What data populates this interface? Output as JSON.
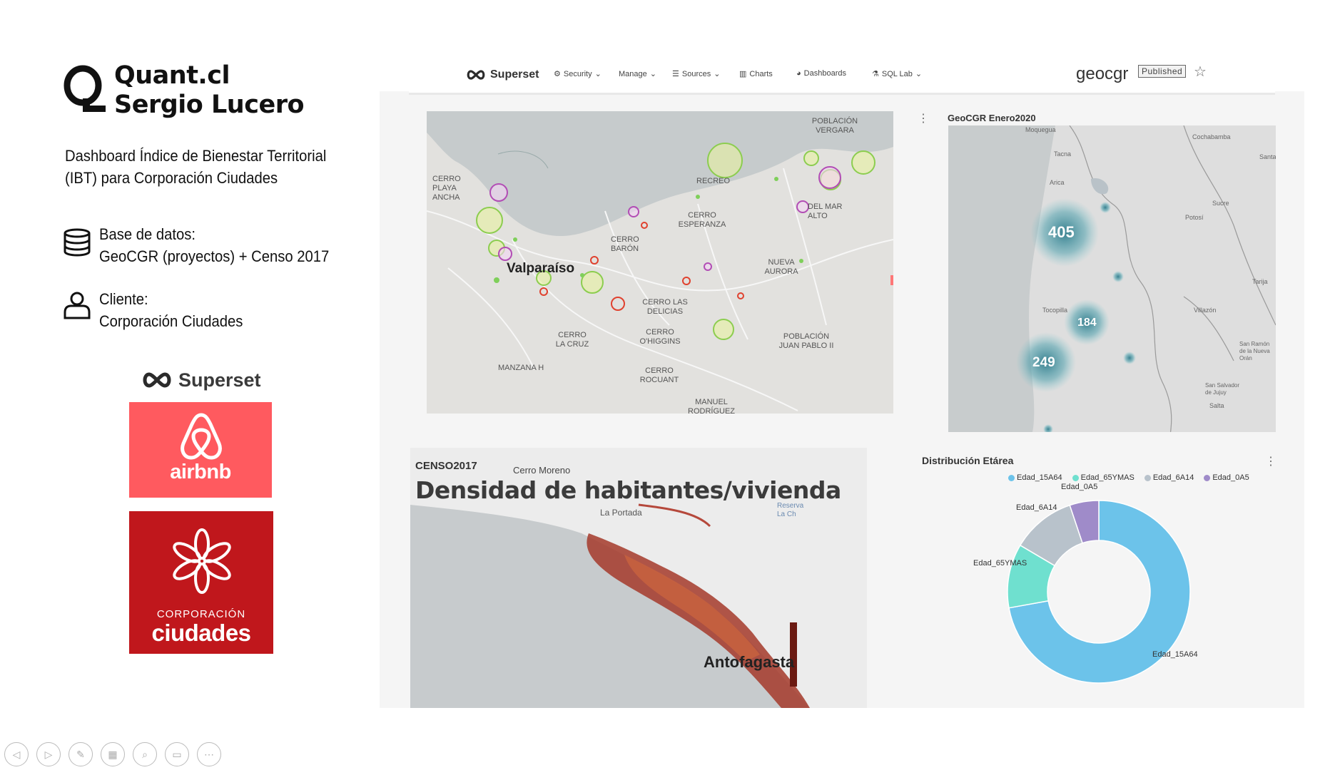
{
  "header": {
    "brand": "Quant.cl",
    "author": "Sergio Lucero",
    "description_line1": "Dashboard Índice de Bienestar Territorial",
    "description_line2": "(IBT) para Corporación Ciudades"
  },
  "info": {
    "database_label": "Base de datos:",
    "database_value": "GeoCGR (proyectos) + Censo 2017",
    "client_label": "Cliente:",
    "client_value": "Corporación Ciudades"
  },
  "logos": {
    "superset": "Superset",
    "airbnb": "airbnb",
    "ciudades_top": "CORPORACIÓN",
    "ciudades_bottom": "ciudades"
  },
  "navbar": {
    "logo": "Superset",
    "items": [
      "Security",
      "Manage",
      "Sources",
      "Charts",
      "Dashboards",
      "SQL Lab"
    ],
    "dashboard_title": "geocgr",
    "status_badge": "Published"
  },
  "map_panel": {
    "labels": [
      "POBLACIÓN VERGARA",
      "CERRO PLAYA ANCHA",
      "RECREO",
      "CERRO ESPERANZA",
      "CERRO BARÓN",
      "Valparaíso",
      "CERRO LAS DELICIAS",
      "NUEVA AURORA",
      "CERRO LA CRUZ",
      "CERRO O'HIGGINS",
      "MANZANA H",
      "CERRO ROCUANT",
      "POBLACIÓN JUAN PABLO II",
      "MANUEL RODRÍGUEZ",
      "DEL MAR ALTO"
    ]
  },
  "geo_panel": {
    "title": "GeoCGR Enero2020",
    "clusters": [
      "405",
      "184",
      "249"
    ],
    "places": [
      "Moquegua",
      "Tacna",
      "Arica",
      "Cochabamba",
      "Santa",
      "Sucre",
      "Potosí",
      "Tarija",
      "Tocopilla",
      "Villazón",
      "San Ramón de la Nueva Orán",
      "San Salvador de Jujuy",
      "Salta"
    ]
  },
  "censo_panel": {
    "label": "CENSO2017",
    "title": "Densidad de habitantes/vivienda",
    "places": [
      "Cerro Moreno",
      "La Portada",
      "Antofagasta",
      "Reserva La Ch"
    ]
  },
  "pie_panel": {
    "title": "Distribución Etárea",
    "legend": [
      "Edad_15A64",
      "Edad_65YMAS",
      "Edad_6A14",
      "Edad_0A5"
    ],
    "slice_labels": [
      "Edad_0A5",
      "Edad_6A14",
      "Edad_65YMAS",
      "Edad_15A64"
    ],
    "colors": {
      "Edad_15A64": "#6cc3ea",
      "Edad_65YMAS": "#6fe0cf",
      "Edad_6A14": "#b8c2cb",
      "Edad_0A5": "#9f8bc9"
    }
  },
  "chart_data": {
    "type": "pie",
    "donut": true,
    "title": "Distribución Etárea",
    "categories": [
      "Edad_15A64",
      "Edad_65YMAS",
      "Edad_6A14",
      "Edad_0A5"
    ],
    "values": [
      70,
      11,
      11,
      5
    ],
    "legend": "top"
  },
  "toolbar": {
    "buttons": [
      "prev-icon",
      "next-icon",
      "pen-icon",
      "grid-icon",
      "zoom-icon",
      "subtitles-icon",
      "more-icon"
    ]
  }
}
